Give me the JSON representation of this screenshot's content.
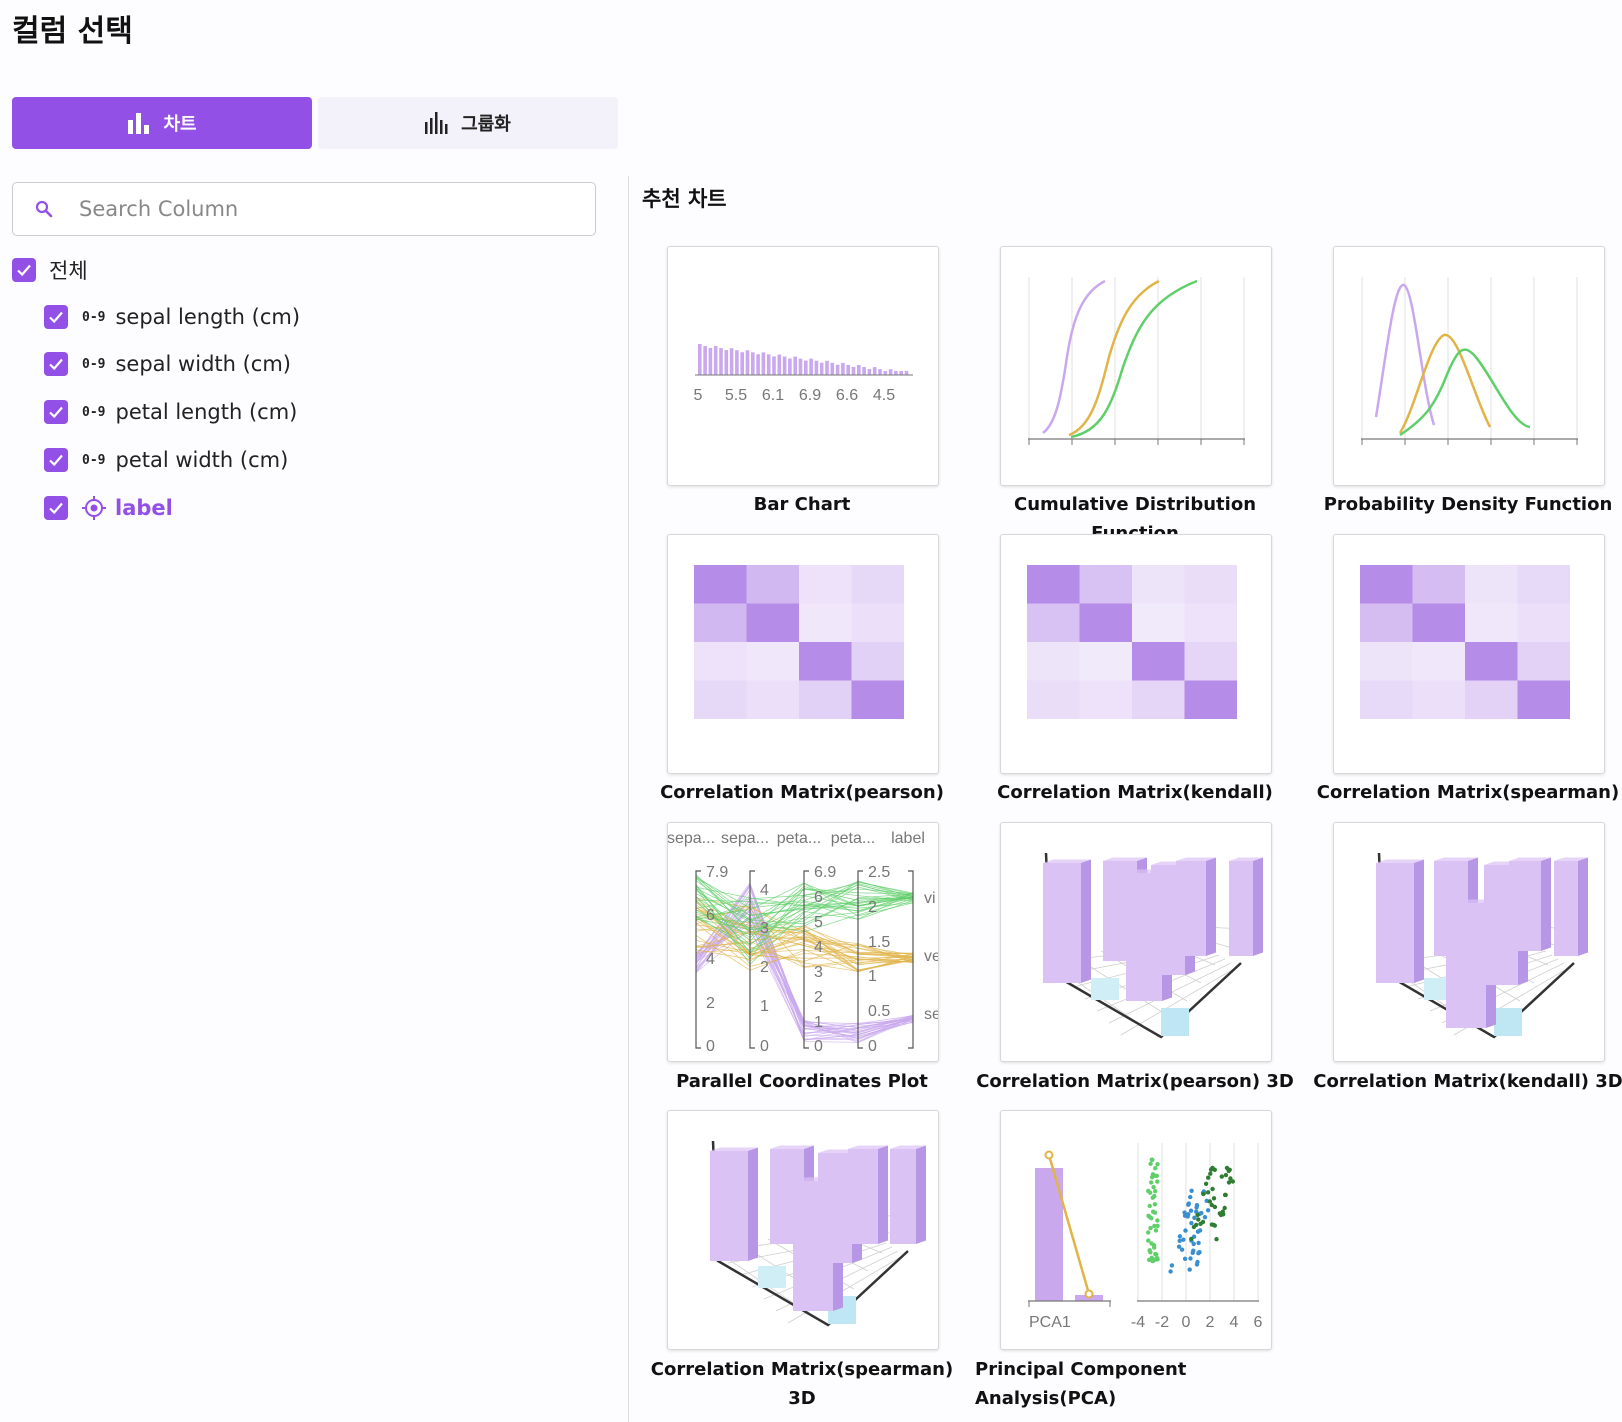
{
  "page_title": "컬럼 선택",
  "tabs": [
    {
      "label": "차트",
      "icon": "bar-chart-icon",
      "active": true
    },
    {
      "label": "그룹화",
      "icon": "group-bars-icon",
      "active": false
    }
  ],
  "search": {
    "placeholder": "Search Column",
    "value": ""
  },
  "select_all": {
    "label": "전체",
    "checked": true
  },
  "columns": [
    {
      "type_icon": "0-9",
      "name": "sepal length (cm)",
      "checked": true
    },
    {
      "type_icon": "0-9",
      "name": "sepal width (cm)",
      "checked": true
    },
    {
      "type_icon": "0-9",
      "name": "petal length (cm)",
      "checked": true
    },
    {
      "type_icon": "0-9",
      "name": "petal width (cm)",
      "checked": true
    },
    {
      "type_icon": "target-icon",
      "name": "label",
      "checked": true,
      "is_target": true
    }
  ],
  "recommended_title": "추천 차트",
  "charts": [
    {
      "label": "Bar Chart",
      "x_ticks": [
        "5",
        "5.5",
        "6.1",
        "6.9",
        "6.6",
        "4.5"
      ]
    },
    {
      "label": "Cumulative Distribution Function"
    },
    {
      "label": "Probability Density Function"
    },
    {
      "label": "Correlation Matrix(pearson)"
    },
    {
      "label": "Correlation Matrix(kendall)"
    },
    {
      "label": "Correlation Matrix(spearman)"
    },
    {
      "label": "Parallel Coordinates Plot",
      "dim_labels": [
        "sepa...",
        "sepa...",
        "peta...",
        "peta...",
        "label"
      ],
      "axis1_ticks": [
        "7.9",
        "6",
        "4",
        "2",
        "0"
      ],
      "axis2_ticks": [
        "4",
        "3",
        "2",
        "1",
        "0"
      ],
      "axis3_ticks": [
        "6.9",
        "6",
        "5",
        "4",
        "3",
        "2",
        "1",
        "0"
      ],
      "axis4_ticks": [
        "2.5",
        "2",
        "1.5",
        "1",
        "0.5",
        "0"
      ],
      "axis5_ticks": [
        "vi",
        "ve",
        "se"
      ]
    },
    {
      "label": "Correlation Matrix(pearson) 3D"
    },
    {
      "label": "Correlation Matrix(kendall) 3D"
    },
    {
      "label": "Correlation Matrix(spearman) 3D"
    },
    {
      "label": "Principal Component Analysis(PCA)",
      "bar_x_label": "PCA1",
      "scatter_x_ticks": [
        "-4",
        "-2",
        "0",
        "2",
        "4",
        "6"
      ]
    }
  ],
  "colors": {
    "accent": "#9250e6",
    "purple_light": "#c9a8ee",
    "orange": "#e0b447",
    "green": "#5fcf6a",
    "blue": "#3a8fd1",
    "dark_green": "#2e7d32"
  }
}
